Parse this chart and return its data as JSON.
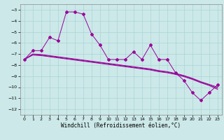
{
  "xlabel": "Windchill (Refroidissement éolien,°C)",
  "bg_color": "#cce8e8",
  "grid_color": "#aad4d4",
  "line_color": "#990099",
  "xlim": [
    -0.5,
    23.5
  ],
  "ylim": [
    -12.5,
    -2.5
  ],
  "yticks": [
    -3,
    -4,
    -5,
    -6,
    -7,
    -8,
    -9,
    -10,
    -11,
    -12
  ],
  "xticks": [
    0,
    1,
    2,
    3,
    4,
    5,
    6,
    7,
    8,
    9,
    10,
    11,
    12,
    13,
    14,
    15,
    16,
    17,
    18,
    19,
    20,
    21,
    22,
    23
  ],
  "x": [
    0,
    1,
    2,
    3,
    4,
    5,
    6,
    7,
    8,
    9,
    10,
    11,
    12,
    13,
    14,
    15,
    16,
    17,
    18,
    19,
    20,
    21,
    22,
    23
  ],
  "y_main": [
    -7.5,
    -6.7,
    -6.7,
    -5.5,
    -5.8,
    -3.2,
    -3.2,
    -3.4,
    -5.2,
    -6.2,
    -7.5,
    -7.5,
    -7.5,
    -6.8,
    -7.5,
    -6.2,
    -7.5,
    -7.5,
    -8.7,
    -9.4,
    -10.5,
    -11.2,
    -10.5,
    -9.8
  ],
  "y_line1": [
    -7.5,
    -7.0,
    -7.05,
    -7.15,
    -7.25,
    -7.35,
    -7.45,
    -7.55,
    -7.65,
    -7.75,
    -7.85,
    -7.95,
    -8.05,
    -8.15,
    -8.25,
    -8.35,
    -8.5,
    -8.6,
    -8.75,
    -8.95,
    -9.2,
    -9.5,
    -9.75,
    -10.0
  ],
  "y_line2": [
    -7.5,
    -7.05,
    -7.1,
    -7.2,
    -7.3,
    -7.4,
    -7.5,
    -7.6,
    -7.7,
    -7.8,
    -7.9,
    -8.0,
    -8.1,
    -8.2,
    -8.3,
    -8.4,
    -8.55,
    -8.65,
    -8.8,
    -9.0,
    -9.25,
    -9.55,
    -9.8,
    -10.1
  ],
  "y_line3": [
    -7.5,
    -7.1,
    -7.15,
    -7.25,
    -7.35,
    -7.45,
    -7.55,
    -7.65,
    -7.75,
    -7.85,
    -7.95,
    -8.05,
    -8.15,
    -8.25,
    -8.35,
    -8.45,
    -8.6,
    -8.7,
    -8.85,
    -9.05,
    -9.3,
    -9.6,
    -9.85,
    -10.2
  ],
  "xlabel_fontsize": 5.5,
  "tick_fontsize": 4.5
}
